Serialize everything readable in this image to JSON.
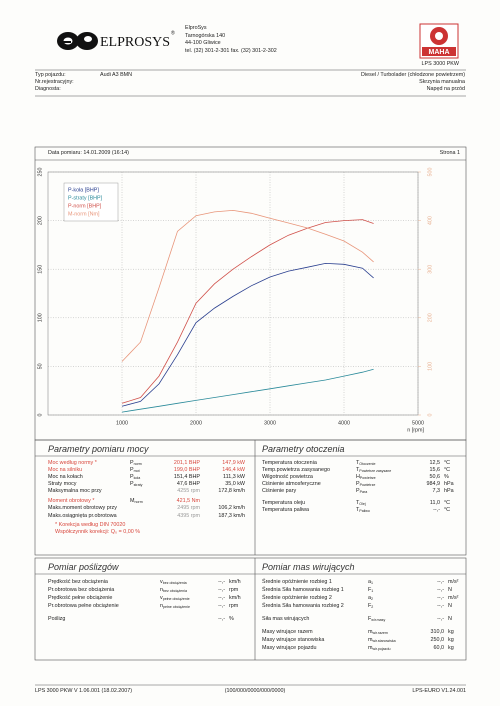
{
  "header": {
    "logo": "ELPROSYS",
    "registered": "®",
    "address": [
      "ElproSys",
      "Tarnogórska 140",
      "44-100 Gliwice",
      "tel. (32) 301-2-301   fax. (32) 301-2-302"
    ],
    "maha_logo": "MAHA",
    "model": "LPS 3000 PKW"
  },
  "vehicle": {
    "left": [
      {
        "label": "Typ pojazdu:",
        "value": "Audi A3 BMN"
      },
      {
        "label": "Nr.rejestracyjny:"
      },
      {
        "label": "Diagnosta:"
      }
    ],
    "right": [
      "Diesel / Turbolader (chłodzone powietrzem)",
      "Skrzynia manualna",
      "Napęd na przód"
    ]
  },
  "measurement": {
    "date": "Data pomiaru: 14.01.2009 (16:14)",
    "page": "Strona 1"
  },
  "chart_data": {
    "type": "line",
    "x": [
      1000,
      1250,
      1500,
      1750,
      2000,
      2250,
      2500,
      2750,
      3000,
      3250,
      3500,
      3750,
      4000,
      4250,
      4400
    ],
    "series": [
      {
        "name": "P-koła [BHP]",
        "color": "#2a3f8f",
        "values": [
          9,
          14,
          32,
          62,
          95,
          110,
          122,
          133,
          142,
          148,
          152,
          156,
          155,
          151,
          141
        ]
      },
      {
        "name": "P-straty [BHP]",
        "color": "#2a8a9a",
        "values": [
          3,
          6,
          9,
          12,
          15,
          18,
          21,
          24,
          27,
          30,
          33,
          36,
          40,
          44,
          47
        ]
      },
      {
        "name": "P-norm [BHP]",
        "color": "#d0504a",
        "values": [
          12,
          18,
          40,
          75,
          115,
          135,
          150,
          163,
          175,
          185,
          192,
          198,
          200,
          201,
          197
        ]
      },
      {
        "name": "M-norm [Nm]",
        "color": "#e8957a",
        "axis": "y2",
        "values": [
          110,
          150,
          262,
          378,
          410,
          418,
          421,
          415,
          405,
          395,
          385,
          372,
          358,
          335,
          315
        ]
      }
    ],
    "xlim": [
      0,
      5000
    ],
    "xticks": [
      1000,
      2000,
      3000,
      4000,
      5000
    ],
    "xlabel": "n [rpm]",
    "ylim": [
      0,
      250
    ],
    "yticks": [
      0,
      50,
      100,
      150,
      200,
      250
    ],
    "y2lim": [
      0,
      500
    ],
    "y2ticks": [
      0,
      100,
      200,
      300,
      400,
      500
    ],
    "y2color": "#e8b090",
    "grid": true,
    "legend": "upper left"
  },
  "power": {
    "title": "Parametry pomiaru mocy",
    "rows": [
      {
        "label": "Moc według normy *",
        "sym": "P",
        "sub": "norm",
        "cells": [
          "201,1 BHP",
          "147,9 kW"
        ],
        "red": true
      },
      {
        "label": "Moc na silniku",
        "sym": "P",
        "sub": "mot",
        "cells": [
          "199,0 BHP",
          "146,4 kW"
        ],
        "red": true
      },
      {
        "label": "Moc na kołach",
        "sym": "P",
        "sub": "koła",
        "cells": [
          "151,4 BHP",
          "111,3 kW"
        ]
      },
      {
        "label": "Straty mocy",
        "sym": "P",
        "sub": "straty",
        "cells": [
          "47,6 BHP",
          "35,0 kW"
        ]
      },
      {
        "label": "Maksymalna moc przy",
        "cells": [
          "4255 rpm",
          "172,8 km/h"
        ]
      },
      {
        "label": "Moment obrotowy *",
        "sym": "M",
        "sub": "norm",
        "cells": [
          "421,5 Nm"
        ],
        "red": true
      },
      {
        "label": "Maks.moment obrotowy przy",
        "cells": [
          "2495 rpm",
          "106,2 km/h"
        ]
      },
      {
        "label": "Maks.osiągnięta pr.obrotowa",
        "cells": [
          "4395 rpm",
          "187,3 km/h"
        ]
      }
    ],
    "notes": [
      "* Korekcja według DIN 70020",
      "Współczynnik korekcji: Q₀ = 0,00 %"
    ]
  },
  "ambient": {
    "title": "Parametry otoczenia",
    "rows": [
      {
        "label": "Temperatura otoczenia",
        "sym": "T",
        "sub": "Otoczenie",
        "value": "12,5",
        "unit": "°C"
      },
      {
        "label": "Temp.powietrza zasysanego",
        "sym": "T",
        "sub": "Powietrze zasysane",
        "value": "15,6",
        "unit": "°C"
      },
      {
        "label": "Wilgotność powietrza",
        "sym": "H",
        "sub": "Powietrze",
        "value": "50,6",
        "unit": "%"
      },
      {
        "label": "Ciśnienie atmosferyczne",
        "sym": "P",
        "sub": "Powietrze",
        "value": "984,9",
        "unit": "hPa"
      },
      {
        "label": "Ciśnienie pary",
        "sym": "P",
        "sub": "Para",
        "value": "7,3",
        "unit": "hPa"
      },
      {
        "label": "Temperatura oleju",
        "sym": "T",
        "sub": "Olej",
        "value": "11,0",
        "unit": "°C"
      },
      {
        "label": "Temperatura paliwa",
        "sym": "T",
        "sub": "Paliwo",
        "value": "--,-",
        "unit": "°C"
      }
    ]
  },
  "slip": {
    "title": "Pomiar poślizgów",
    "rows": [
      {
        "label": "Prędkość bez obciążenia",
        "sym": "v",
        "sub": "bez obciążenia",
        "value": "--,-",
        "unit": "km/h"
      },
      {
        "label": "Pr.obrotowa bez obciążenia",
        "sym": "n",
        "sub": "bez obciążenia",
        "value": "--,-",
        "unit": "rpm"
      },
      {
        "label": "Prędkość pełne obciążenie",
        "sym": "v",
        "sub": "pełne obciążenie",
        "value": "--,-",
        "unit": "km/h"
      },
      {
        "label": "Pr.obrotowa pełne obciążenie",
        "sym": "n",
        "sub": "pełne obciążenie",
        "value": "--,-",
        "unit": "rpm"
      },
      {
        "label": "Poślizg",
        "value": "--,-",
        "unit": "%"
      }
    ]
  },
  "masses": {
    "title": "Pomiar mas wirujących",
    "rows": [
      {
        "label": "Średnie opóźnienie rozbieg 1",
        "sym": "a",
        "sub": "1",
        "value": "--,-",
        "unit": "m/s²"
      },
      {
        "label": "Średnia Siła hamowania rozbieg 1",
        "sym": "F",
        "sub": "1",
        "value": "--,-",
        "unit": "N"
      },
      {
        "label": "Średnie opóźnienie rozbieg 2",
        "sym": "a",
        "sub": "2",
        "value": "--,-",
        "unit": "m/s²"
      },
      {
        "label": "Średnia Siła hamowania rozbieg 2",
        "sym": "F",
        "sub": "2",
        "value": "--,-",
        "unit": "N"
      },
      {
        "label": "Siła mas wirujących",
        "sym": "F",
        "sub": "wir.masy",
        "value": "--,-",
        "unit": "N"
      },
      {
        "label": "Masy wirujące razem",
        "sym": "m",
        "sub": "wir.razem",
        "value": "310,0",
        "unit": "kg"
      },
      {
        "label": "Masy wirujące stanowiska",
        "sym": "m",
        "sub": "wir.stanowiska",
        "value": "250,0",
        "unit": "kg"
      },
      {
        "label": "Masy wirujące pojazdu",
        "sym": "m",
        "sub": "wir.pojazdu",
        "value": "60,0",
        "unit": "kg"
      }
    ]
  },
  "footer": {
    "left": "LPS 3000 PKW V 1.06.001 (18.02.2007)",
    "center": "(100/000/0000/000/0000)",
    "right": "LPS-EURO V1.24.001"
  }
}
